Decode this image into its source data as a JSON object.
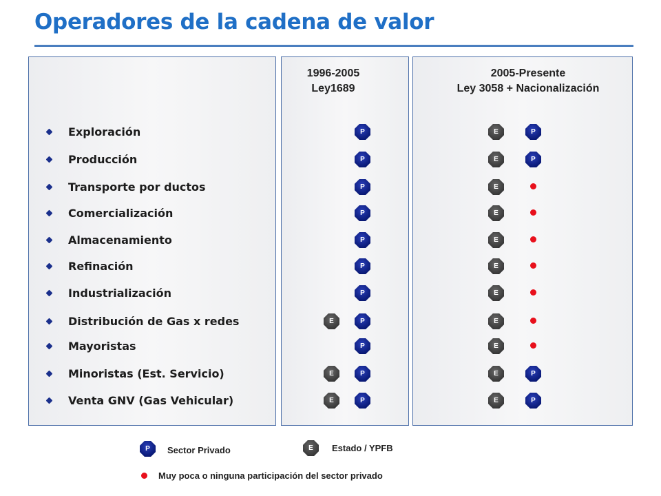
{
  "title": "Operadores de la cadena de valor",
  "columns": {
    "period1": {
      "years": "1996-2005",
      "law": "Ley1689"
    },
    "period2": {
      "years": "2005-Presente",
      "law": "Ley 3058 + Nacionalización"
    }
  },
  "stages": [
    {
      "label": "Exploración",
      "period1": [
        "P"
      ],
      "period2": [
        "E",
        "P"
      ]
    },
    {
      "label": "Producción",
      "period1": [
        "P"
      ],
      "period2": [
        "E",
        "P"
      ]
    },
    {
      "label": "Transporte  por  ductos",
      "period1": [
        "P"
      ],
      "period2": [
        "E",
        "dot"
      ]
    },
    {
      "label": "Comercialización",
      "period1": [
        "P"
      ],
      "period2": [
        "E",
        "dot"
      ]
    },
    {
      "label": "Almacenamiento",
      "period1": [
        "P"
      ],
      "period2": [
        "E",
        "dot"
      ]
    },
    {
      "label": "Refinación",
      "period1": [
        "P"
      ],
      "period2": [
        "E",
        "dot"
      ]
    },
    {
      "label": "Industrialización",
      "period1": [
        "P"
      ],
      "period2": [
        "E",
        "dot"
      ]
    },
    {
      "label": "Distribución  de Gas x redes",
      "period1": [
        "E",
        "P"
      ],
      "period2": [
        "E",
        "dot"
      ]
    },
    {
      "label": "Mayoristas",
      "period1": [
        "P"
      ],
      "period2": [
        "E",
        "dot"
      ]
    },
    {
      "label": "Minoristas  (Est.  Servicio)",
      "period1": [
        "E",
        "P"
      ],
      "period2": [
        "E",
        "P"
      ]
    },
    {
      "label": "Venta GNV (Gas Vehicular)",
      "period1": [
        "E",
        "P"
      ],
      "period2": [
        "E",
        "P"
      ]
    }
  ],
  "badges": {
    "private": "P",
    "state": "E"
  },
  "legend": {
    "private_label": "Sector Privado",
    "state_label": "Estado / YPFB",
    "dot_label": "Muy poca o ninguna participación del sector privado"
  },
  "colors": {
    "title": "#1f6fc6",
    "private": "#0a1a78",
    "state": "#3a3a3a",
    "dot": "#e8101c",
    "bullet": "#1a2f8c"
  }
}
